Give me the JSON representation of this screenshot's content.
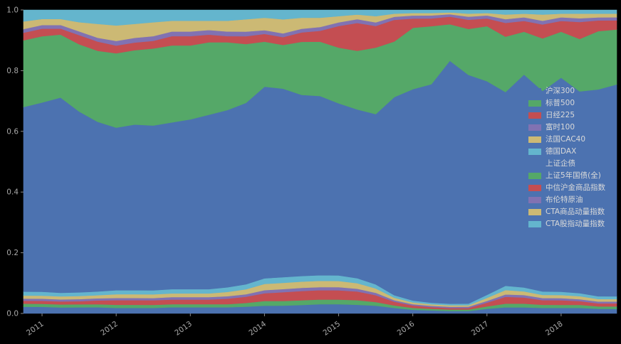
{
  "figure": {
    "background": "#000000",
    "tick_color": "#a8a8a8",
    "legend_text_color": "#d9d9d9"
  },
  "chart_data": {
    "type": "area",
    "stacked": true,
    "normalized": true,
    "title": "",
    "xlabel": "",
    "ylabel": "",
    "ylim": [
      0,
      1
    ],
    "grid": false,
    "legend_position": "center-right",
    "palette": [
      "#4c72b0",
      "#55a868",
      "#c44e52",
      "#8172b2",
      "#ccb974",
      "#64b5cd"
    ],
    "xticks": {
      "values": [
        2011,
        2012,
        2013,
        2014,
        2015,
        2016,
        2017,
        2018
      ],
      "labels": [
        "2011",
        "2012",
        "2013",
        "2014",
        "2015",
        "2016",
        "2017",
        "2018"
      ]
    },
    "yticks": {
      "values": [
        0,
        0.2,
        0.4,
        0.6,
        0.8,
        1.0
      ],
      "labels": [
        "0.0",
        "0.2",
        "0.4",
        "0.6",
        "0.8",
        "1.0"
      ]
    },
    "x": [
      2010.75,
      2011.0,
      2011.25,
      2011.5,
      2011.75,
      2012.0,
      2012.25,
      2012.5,
      2012.75,
      2013.0,
      2013.25,
      2013.5,
      2013.75,
      2014.0,
      2014.25,
      2014.5,
      2014.75,
      2015.0,
      2015.25,
      2015.5,
      2015.75,
      2016.0,
      2016.25,
      2016.5,
      2016.75,
      2017.0,
      2017.25,
      2017.5,
      2017.75,
      2018.0,
      2018.25,
      2018.5,
      2018.75
    ],
    "series": [
      {
        "name": "沪深300",
        "color": "#4c72b0",
        "values": [
          0.022,
          0.022,
          0.02,
          0.02,
          0.02,
          0.018,
          0.018,
          0.018,
          0.02,
          0.02,
          0.02,
          0.02,
          0.022,
          0.025,
          0.025,
          0.027,
          0.03,
          0.03,
          0.028,
          0.025,
          0.018,
          0.012,
          0.01,
          0.008,
          0.008,
          0.015,
          0.02,
          0.02,
          0.018,
          0.018,
          0.018,
          0.015,
          0.015
        ]
      },
      {
        "name": "标普500",
        "color": "#55a868",
        "values": [
          0.01,
          0.01,
          0.01,
          0.01,
          0.01,
          0.01,
          0.01,
          0.01,
          0.01,
          0.01,
          0.01,
          0.01,
          0.012,
          0.015,
          0.015,
          0.015,
          0.015,
          0.015,
          0.015,
          0.012,
          0.008,
          0.006,
          0.005,
          0.005,
          0.005,
          0.008,
          0.012,
          0.012,
          0.01,
          0.01,
          0.01,
          0.008,
          0.008
        ]
      },
      {
        "name": "日经225",
        "color": "#c44e52",
        "values": [
          0.01,
          0.01,
          0.01,
          0.01,
          0.012,
          0.015,
          0.015,
          0.015,
          0.015,
          0.015,
          0.015,
          0.018,
          0.02,
          0.025,
          0.028,
          0.03,
          0.03,
          0.03,
          0.028,
          0.022,
          0.012,
          0.008,
          0.006,
          0.005,
          0.005,
          0.012,
          0.022,
          0.02,
          0.015,
          0.015,
          0.012,
          0.01,
          0.01
        ]
      },
      {
        "name": "富时100",
        "color": "#8172b2",
        "values": [
          0.007,
          0.007,
          0.007,
          0.007,
          0.007,
          0.007,
          0.007,
          0.007,
          0.008,
          0.008,
          0.008,
          0.008,
          0.008,
          0.01,
          0.01,
          0.01,
          0.01,
          0.01,
          0.009,
          0.008,
          0.005,
          0.004,
          0.004,
          0.004,
          0.004,
          0.006,
          0.008,
          0.008,
          0.007,
          0.007,
          0.006,
          0.006,
          0.006
        ]
      },
      {
        "name": "法国CAC40",
        "color": "#ccb974",
        "values": [
          0.01,
          0.01,
          0.01,
          0.01,
          0.01,
          0.012,
          0.012,
          0.012,
          0.012,
          0.012,
          0.012,
          0.014,
          0.016,
          0.02,
          0.02,
          0.02,
          0.02,
          0.02,
          0.018,
          0.014,
          0.008,
          0.006,
          0.005,
          0.005,
          0.005,
          0.01,
          0.014,
          0.012,
          0.01,
          0.01,
          0.01,
          0.008,
          0.008
        ]
      },
      {
        "name": "德国DAX",
        "color": "#64b5cd",
        "values": [
          0.013,
          0.013,
          0.012,
          0.012,
          0.012,
          0.013,
          0.013,
          0.013,
          0.014,
          0.014,
          0.014,
          0.015,
          0.016,
          0.018,
          0.018,
          0.018,
          0.018,
          0.018,
          0.016,
          0.013,
          0.008,
          0.006,
          0.005,
          0.005,
          0.005,
          0.01,
          0.014,
          0.013,
          0.011,
          0.011,
          0.01,
          0.009,
          0.009
        ]
      },
      {
        "name": "上证企债",
        "color": "#4c72b0",
        "values": [
          0.608,
          0.628,
          0.651,
          0.591,
          0.549,
          0.525,
          0.535,
          0.535,
          0.541,
          0.551,
          0.566,
          0.575,
          0.586,
          0.617,
          0.604,
          0.58,
          0.577,
          0.557,
          0.546,
          0.551,
          0.641,
          0.688,
          0.715,
          0.798,
          0.748,
          0.699,
          0.63,
          0.695,
          0.649,
          0.699,
          0.654,
          0.674,
          0.694
        ]
      },
      {
        "name": "上证5年国债(全)",
        "color": "#55a868",
        "values": [
          0.22,
          0.22,
          0.21,
          0.22,
          0.23,
          0.24,
          0.24,
          0.25,
          0.25,
          0.24,
          0.235,
          0.22,
          0.19,
          0.145,
          0.14,
          0.17,
          0.175,
          0.18,
          0.19,
          0.215,
          0.18,
          0.2,
          0.19,
          0.12,
          0.15,
          0.18,
          0.18,
          0.14,
          0.17,
          0.15,
          0.17,
          0.19,
          0.18
        ]
      },
      {
        "name": "中信沪金商品指数",
        "color": "#c44e52",
        "values": [
          0.025,
          0.025,
          0.02,
          0.03,
          0.03,
          0.025,
          0.025,
          0.025,
          0.03,
          0.03,
          0.025,
          0.02,
          0.025,
          0.025,
          0.025,
          0.03,
          0.035,
          0.07,
          0.09,
          0.07,
          0.07,
          0.03,
          0.025,
          0.025,
          0.03,
          0.025,
          0.045,
          0.035,
          0.045,
          0.035,
          0.055,
          0.035,
          0.03
        ]
      },
      {
        "name": "布伦特原油",
        "color": "#8172b2",
        "values": [
          0.012,
          0.012,
          0.012,
          0.012,
          0.012,
          0.015,
          0.015,
          0.015,
          0.015,
          0.015,
          0.015,
          0.015,
          0.015,
          0.012,
          0.012,
          0.012,
          0.012,
          0.012,
          0.012,
          0.012,
          0.01,
          0.01,
          0.01,
          0.008,
          0.01,
          0.01,
          0.012,
          0.012,
          0.012,
          0.012,
          0.012,
          0.01,
          0.01
        ]
      },
      {
        "name": "CTA商品动量指数",
        "color": "#ccb974",
        "values": [
          0.025,
          0.02,
          0.02,
          0.03,
          0.045,
          0.05,
          0.045,
          0.045,
          0.035,
          0.035,
          0.03,
          0.035,
          0.04,
          0.04,
          0.045,
          0.035,
          0.03,
          0.02,
          0.015,
          0.02,
          0.01,
          0.008,
          0.008,
          0.006,
          0.01,
          0.008,
          0.015,
          0.012,
          0.02,
          0.012,
          0.015,
          0.012,
          0.012
        ]
      },
      {
        "name": "CTA股指动量指数",
        "color": "#64b5cd",
        "values": [
          0.038,
          0.03,
          0.03,
          0.04,
          0.045,
          0.05,
          0.045,
          0.04,
          0.035,
          0.035,
          0.035,
          0.035,
          0.03,
          0.025,
          0.03,
          0.025,
          0.025,
          0.02,
          0.015,
          0.02,
          0.012,
          0.01,
          0.01,
          0.008,
          0.012,
          0.01,
          0.015,
          0.012,
          0.015,
          0.012,
          0.012,
          0.012,
          0.012
        ]
      }
    ]
  }
}
